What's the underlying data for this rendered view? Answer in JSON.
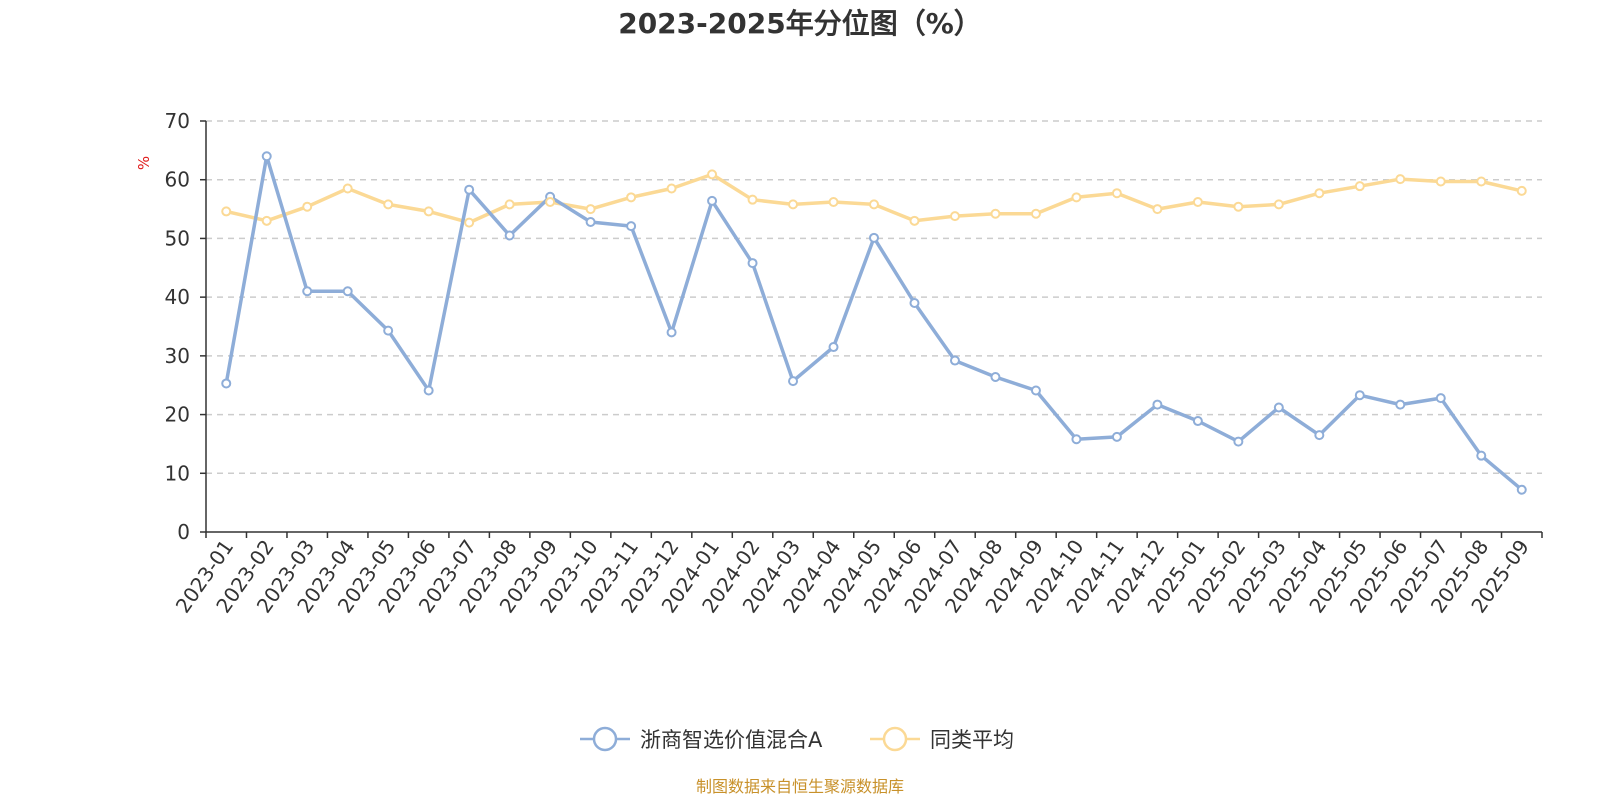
{
  "chart_data": {
    "type": "line",
    "title": "2023-2025年分位图（%）",
    "ylabel": "%",
    "ylim": [
      0,
      70
    ],
    "yticks": [
      0,
      10,
      20,
      30,
      40,
      50,
      60,
      70
    ],
    "grid": true,
    "legend_position": "bottom",
    "categories": [
      "2023-01",
      "2023-02",
      "2023-03",
      "2023-04",
      "2023-05",
      "2023-06",
      "2023-07",
      "2023-08",
      "2023-09",
      "2023-10",
      "2023-11",
      "2023-12",
      "2024-01",
      "2024-02",
      "2024-03",
      "2024-04",
      "2024-05",
      "2024-06",
      "2024-07",
      "2024-08",
      "2024-09",
      "2024-10",
      "2024-11",
      "2024-12",
      "2025-01",
      "2025-02",
      "2025-03",
      "2025-04",
      "2025-05",
      "2025-06",
      "2025-07",
      "2025-08",
      "2025-09"
    ],
    "series": [
      {
        "name": "浙商智选价值混合A",
        "color": "#8eadd8",
        "values": [
          25.3,
          64.0,
          41.0,
          41.0,
          34.3,
          24.1,
          58.3,
          50.5,
          57.1,
          52.8,
          52.1,
          34.0,
          56.4,
          45.8,
          25.7,
          31.5,
          50.1,
          39.0,
          29.2,
          26.4,
          24.1,
          15.8,
          16.2,
          21.7,
          18.9,
          15.4,
          21.2,
          16.5,
          23.3,
          21.7,
          22.8,
          13.0,
          7.2
        ]
      },
      {
        "name": "同类平均",
        "color": "#fbd995",
        "values": [
          54.6,
          53.0,
          55.4,
          58.5,
          55.8,
          54.6,
          52.7,
          55.8,
          56.2,
          55.0,
          57.0,
          58.5,
          60.9,
          56.6,
          55.8,
          56.2,
          55.8,
          53.0,
          53.8,
          54.2,
          54.2,
          57.0,
          57.7,
          55.0,
          56.2,
          55.4,
          55.8,
          57.7,
          58.9,
          60.1,
          59.7,
          59.7,
          58.1
        ]
      }
    ],
    "source": "制图数据来自恒生聚源数据库"
  }
}
